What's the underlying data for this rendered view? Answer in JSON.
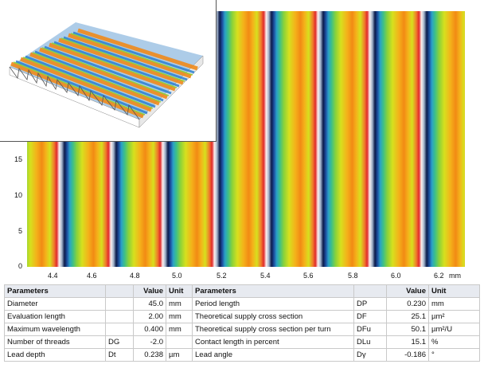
{
  "plot": {
    "y_ticks": [
      "15",
      "10",
      "5",
      "0"
    ],
    "x_ticks": [
      "4.4",
      "4.6",
      "4.8",
      "5.0",
      "5.2",
      "5.4",
      "5.6",
      "5.8",
      "6.0",
      "6.2"
    ],
    "x_unit": "mm"
  },
  "table": {
    "headers": {
      "left_param": "Parameters",
      "left_value": "Value",
      "left_unit": "Unit",
      "right_param": "Parameters",
      "right_value": "Value",
      "right_unit": "Unit"
    },
    "rows": [
      {
        "lname": "Diameter",
        "lsym": "",
        "lval": "45.0",
        "lunit": "mm",
        "rname": "Period length",
        "rsym": "DP",
        "rval": "0.230",
        "runit": "mm"
      },
      {
        "lname": "Evaluation length",
        "lsym": "",
        "lval": "2.00",
        "lunit": "mm",
        "rname": "Theoretical supply cross section",
        "rsym": "DF",
        "rval": "25.1",
        "runit": "µm²"
      },
      {
        "lname": "Maximum wavelength",
        "lsym": "",
        "lval": "0.400",
        "lunit": "mm",
        "rname": "Theoretical supply cross section per turn",
        "rsym": "DFu",
        "rval": "50.1",
        "runit": "µm²/U"
      },
      {
        "lname": "Number of threads",
        "lsym": "DG",
        "lval": "-2.0",
        "lunit": "",
        "rname": "Contact length in percent",
        "rsym": "DLu",
        "rval": "15.1",
        "runit": "%"
      },
      {
        "lname": "Lead depth",
        "lsym": "Dt",
        "lval": "0.238",
        "lunit": "µm",
        "rname": "Lead angle",
        "rsym": "Dγ",
        "rval": "-0.186",
        "runit": "°"
      }
    ]
  }
}
